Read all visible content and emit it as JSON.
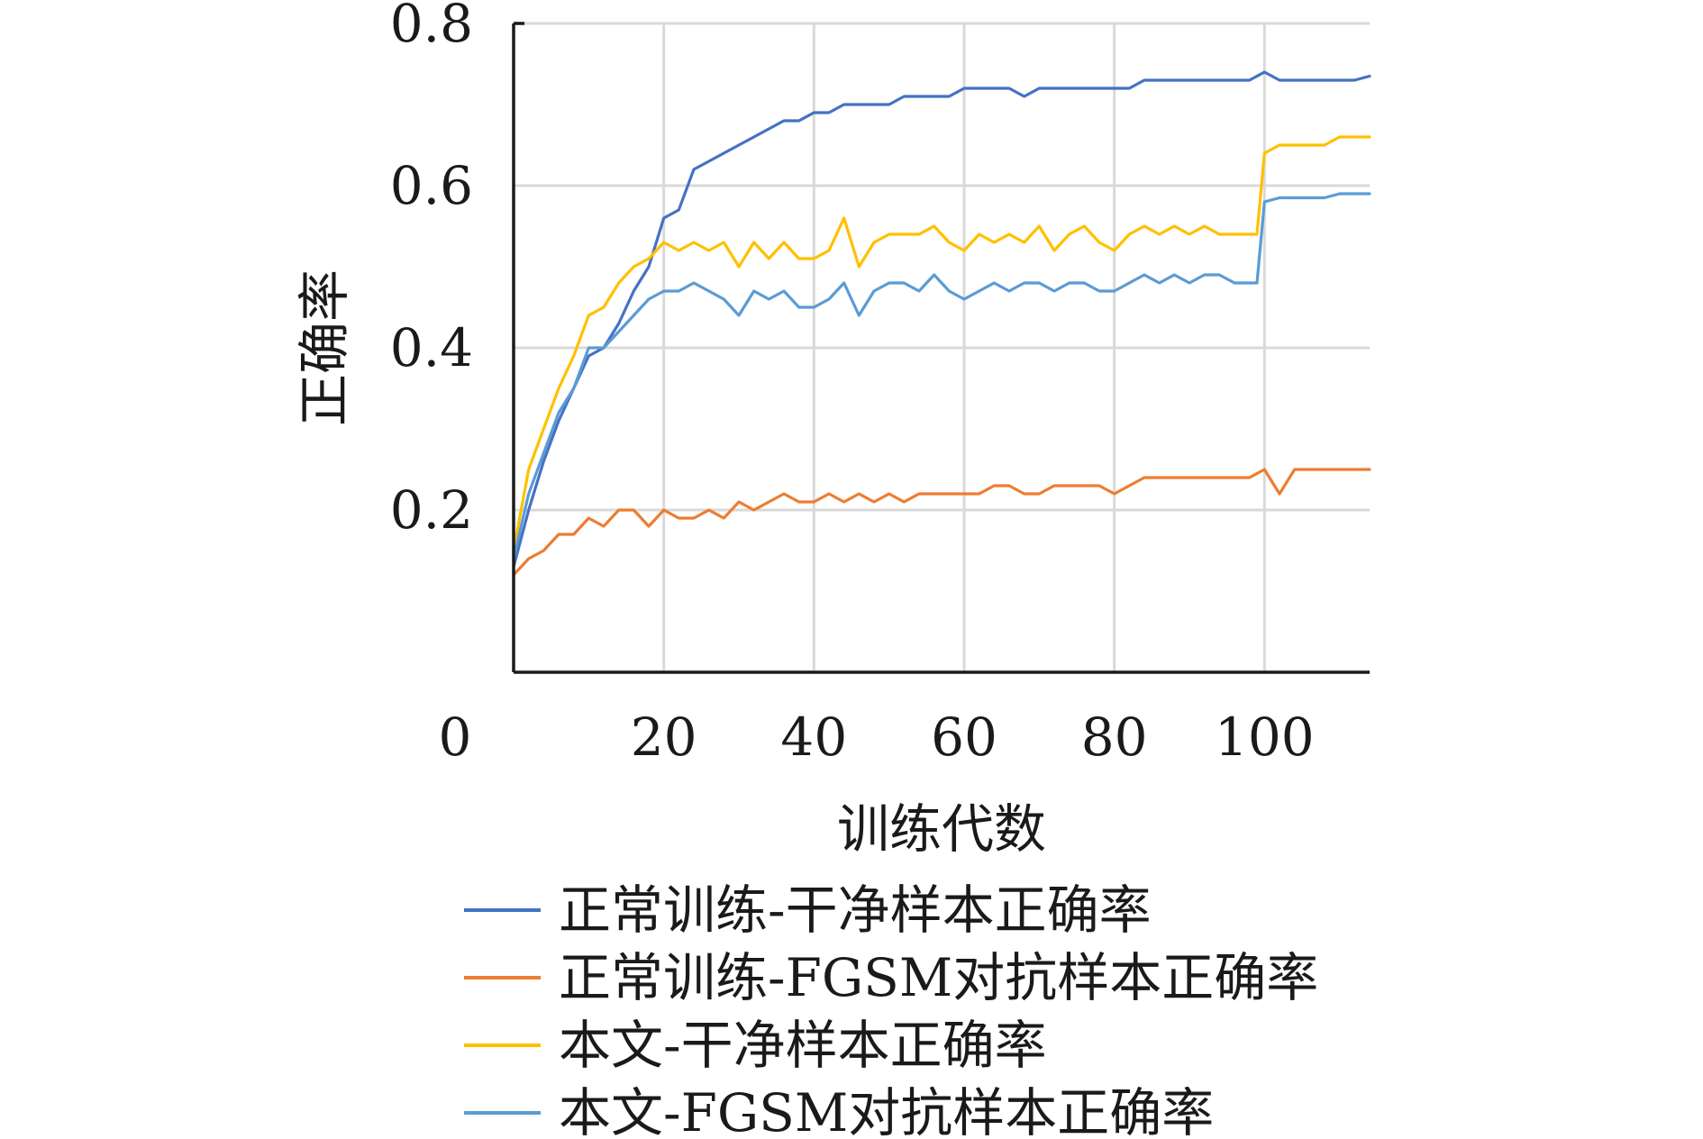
{
  "chart_data": {
    "type": "line",
    "xlabel": "训练代数",
    "ylabel": "正确率",
    "xlim": [
      0,
      114
    ],
    "ylim": [
      0,
      0.8
    ],
    "x_ticks": [
      0,
      20,
      40,
      60,
      80,
      100
    ],
    "y_ticks": [
      0.2,
      0.4,
      0.6,
      0.8
    ],
    "x_tick_labels": [
      "0",
      "20",
      "40",
      "60",
      "80",
      "100"
    ],
    "y_tick_labels": [
      "0.2",
      "0.4",
      "0.6",
      "0.8"
    ],
    "grid": "horizontal",
    "legend": "bottom",
    "series": [
      {
        "name": "正常训练-干净样本正确率",
        "color": "#4472c4",
        "x": [
          0,
          2,
          4,
          6,
          8,
          10,
          12,
          14,
          16,
          18,
          20,
          22,
          24,
          26,
          28,
          30,
          32,
          34,
          36,
          38,
          40,
          42,
          44,
          46,
          48,
          50,
          52,
          54,
          56,
          58,
          60,
          62,
          64,
          66,
          68,
          70,
          72,
          74,
          76,
          78,
          80,
          82,
          84,
          86,
          88,
          90,
          92,
          94,
          96,
          98,
          100,
          102,
          104,
          106,
          108,
          110,
          112,
          114
        ],
        "y": [
          0.13,
          0.2,
          0.26,
          0.31,
          0.35,
          0.39,
          0.4,
          0.43,
          0.47,
          0.5,
          0.56,
          0.57,
          0.62,
          0.63,
          0.64,
          0.65,
          0.66,
          0.67,
          0.68,
          0.68,
          0.69,
          0.69,
          0.7,
          0.7,
          0.7,
          0.7,
          0.71,
          0.71,
          0.71,
          0.71,
          0.72,
          0.72,
          0.72,
          0.72,
          0.71,
          0.72,
          0.72,
          0.72,
          0.72,
          0.72,
          0.72,
          0.72,
          0.73,
          0.73,
          0.73,
          0.73,
          0.73,
          0.73,
          0.73,
          0.73,
          0.74,
          0.73,
          0.73,
          0.73,
          0.73,
          0.73,
          0.73,
          0.735
        ]
      },
      {
        "name": "正常训练-FGSM对抗样本正确率",
        "color": "#ed7d31",
        "x": [
          0,
          2,
          4,
          6,
          8,
          10,
          12,
          14,
          16,
          18,
          20,
          22,
          24,
          26,
          28,
          30,
          32,
          34,
          36,
          38,
          40,
          42,
          44,
          46,
          48,
          50,
          52,
          54,
          56,
          58,
          60,
          62,
          64,
          66,
          68,
          70,
          72,
          74,
          76,
          78,
          80,
          82,
          84,
          86,
          88,
          90,
          92,
          94,
          96,
          98,
          100,
          102,
          104,
          106,
          108,
          110,
          112,
          114
        ],
        "y": [
          0.12,
          0.14,
          0.15,
          0.17,
          0.17,
          0.19,
          0.18,
          0.2,
          0.2,
          0.18,
          0.2,
          0.19,
          0.19,
          0.2,
          0.19,
          0.21,
          0.2,
          0.21,
          0.22,
          0.21,
          0.21,
          0.22,
          0.21,
          0.22,
          0.21,
          0.22,
          0.21,
          0.22,
          0.22,
          0.22,
          0.22,
          0.22,
          0.23,
          0.23,
          0.22,
          0.22,
          0.23,
          0.23,
          0.23,
          0.23,
          0.22,
          0.23,
          0.24,
          0.24,
          0.24,
          0.24,
          0.24,
          0.24,
          0.24,
          0.24,
          0.25,
          0.22,
          0.25,
          0.25,
          0.25,
          0.25,
          0.25,
          0.25
        ]
      },
      {
        "name": "本文-干净样本正确率",
        "color": "#ffc000",
        "x": [
          0,
          2,
          4,
          6,
          8,
          10,
          12,
          14,
          16,
          18,
          20,
          22,
          24,
          26,
          28,
          30,
          32,
          34,
          36,
          38,
          40,
          42,
          44,
          46,
          48,
          50,
          52,
          54,
          56,
          58,
          60,
          62,
          64,
          66,
          68,
          70,
          72,
          74,
          76,
          78,
          80,
          82,
          84,
          86,
          88,
          90,
          92,
          94,
          96,
          98,
          99,
          100,
          102,
          104,
          106,
          108,
          110,
          112,
          114
        ],
        "y": [
          0.15,
          0.25,
          0.3,
          0.35,
          0.39,
          0.44,
          0.45,
          0.48,
          0.5,
          0.51,
          0.53,
          0.52,
          0.53,
          0.52,
          0.53,
          0.5,
          0.53,
          0.51,
          0.53,
          0.51,
          0.51,
          0.52,
          0.56,
          0.5,
          0.53,
          0.54,
          0.54,
          0.54,
          0.55,
          0.53,
          0.52,
          0.54,
          0.53,
          0.54,
          0.53,
          0.55,
          0.52,
          0.54,
          0.55,
          0.53,
          0.52,
          0.54,
          0.55,
          0.54,
          0.55,
          0.54,
          0.55,
          0.54,
          0.54,
          0.54,
          0.54,
          0.64,
          0.65,
          0.65,
          0.65,
          0.65,
          0.66,
          0.66,
          0.66
        ]
      },
      {
        "name": "本文-FGSM对抗样本正确率",
        "color": "#5b9bd5",
        "x": [
          0,
          2,
          4,
          6,
          8,
          10,
          12,
          14,
          16,
          18,
          20,
          22,
          24,
          26,
          28,
          30,
          32,
          34,
          36,
          38,
          40,
          42,
          44,
          46,
          48,
          50,
          52,
          54,
          56,
          58,
          60,
          62,
          64,
          66,
          68,
          70,
          72,
          74,
          76,
          78,
          80,
          82,
          84,
          86,
          88,
          90,
          92,
          94,
          96,
          98,
          99,
          100,
          102,
          104,
          106,
          108,
          110,
          112,
          114
        ],
        "y": [
          0.14,
          0.22,
          0.27,
          0.32,
          0.35,
          0.4,
          0.4,
          0.42,
          0.44,
          0.46,
          0.47,
          0.47,
          0.48,
          0.47,
          0.46,
          0.44,
          0.47,
          0.46,
          0.47,
          0.45,
          0.45,
          0.46,
          0.48,
          0.44,
          0.47,
          0.48,
          0.48,
          0.47,
          0.49,
          0.47,
          0.46,
          0.47,
          0.48,
          0.47,
          0.48,
          0.48,
          0.47,
          0.48,
          0.48,
          0.47,
          0.47,
          0.48,
          0.49,
          0.48,
          0.49,
          0.48,
          0.49,
          0.49,
          0.48,
          0.48,
          0.48,
          0.58,
          0.585,
          0.585,
          0.585,
          0.585,
          0.59,
          0.59,
          0.59
        ]
      }
    ]
  }
}
